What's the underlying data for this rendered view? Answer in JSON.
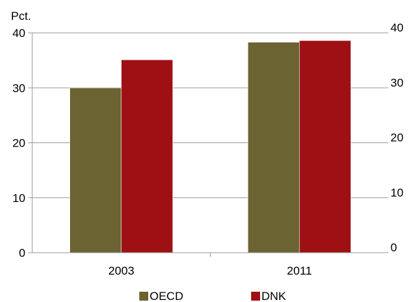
{
  "chart_data": {
    "type": "bar",
    "title": "",
    "ylabel": "Pct.",
    "categories": [
      "2003",
      "2011"
    ],
    "series": [
      {
        "name": "OECD",
        "values": [
          30,
          38.3
        ],
        "color": "#6b6332"
      },
      {
        "name": "DNK",
        "values": [
          35.1,
          38.6
        ],
        "color": "#9e1014"
      }
    ],
    "ylim": [
      0,
      40
    ],
    "yticks": [
      0,
      10,
      20,
      30,
      40
    ],
    "secondary_yticks": [
      0,
      10,
      20,
      30,
      40
    ],
    "grid": true,
    "legend": "bottom"
  }
}
